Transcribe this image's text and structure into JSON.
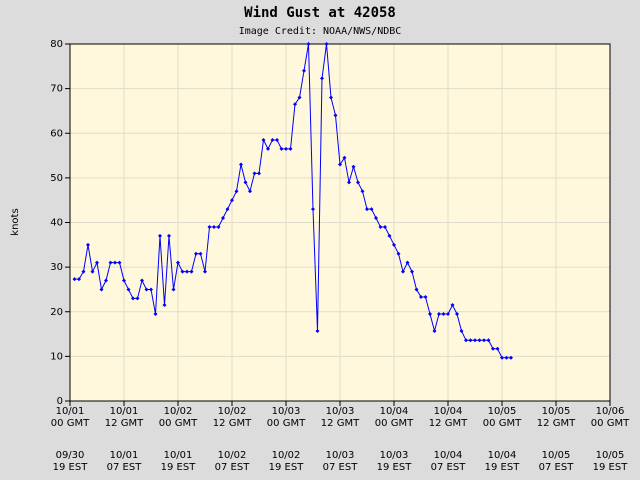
{
  "chart_data": {
    "type": "line",
    "title": "Wind Gust at 42058",
    "subtitle": "Image Credit: NOAA/NWS/NDBC",
    "ylabel": "knots",
    "x": [
      1,
      2,
      3,
      4,
      5,
      6,
      7,
      8,
      9,
      10,
      11,
      12,
      13,
      14,
      15,
      16,
      17,
      18,
      19,
      20,
      21,
      22,
      23,
      24,
      25,
      26,
      27,
      28,
      29,
      30,
      31,
      32,
      33,
      34,
      35,
      36,
      37,
      38,
      39,
      40,
      41,
      42,
      43,
      44,
      45,
      46,
      47,
      48,
      49,
      50,
      51,
      52,
      53,
      54,
      55,
      56,
      57,
      58,
      59,
      60,
      61,
      62,
      63,
      64,
      65,
      66,
      67,
      68,
      69,
      70,
      71,
      72,
      73,
      74,
      75,
      76,
      77,
      78,
      79,
      80,
      81,
      82,
      83,
      84,
      85,
      86,
      87,
      88,
      89,
      90,
      91,
      92,
      93,
      94,
      95,
      96,
      97,
      98
    ],
    "series": [
      {
        "name": "Wind Gust",
        "color": "#0000ff",
        "values": [
          27.3,
          27.3,
          29,
          35,
          29,
          31,
          25,
          27,
          31,
          31,
          31,
          27,
          25,
          23,
          23,
          27,
          25,
          25,
          19.5,
          37,
          21.5,
          37,
          25,
          31,
          29,
          29,
          29,
          33,
          33,
          29,
          39,
          39,
          39,
          41,
          43,
          45,
          47,
          53,
          49,
          47,
          51,
          51,
          58.5,
          56.5,
          58.5,
          58.5,
          56.5,
          56.5,
          56.5,
          66.5,
          68,
          74,
          80,
          43,
          15.7,
          72.3,
          80,
          68,
          64,
          53,
          54.5,
          49,
          52.5,
          49,
          47,
          43,
          43,
          41,
          39,
          39,
          37,
          35,
          33,
          29,
          31,
          29,
          25,
          23.3,
          23.3,
          19.5,
          15.7,
          19.5,
          19.5,
          19.5,
          21.5,
          19.5,
          15.7,
          13.6,
          13.6,
          13.6,
          13.6,
          13.6,
          13.6,
          11.7,
          11.7,
          9.7,
          9.7,
          9.7
        ]
      }
    ],
    "xlim": [
      0,
      120
    ],
    "xticks": [
      {
        "value": 0,
        "label": "10/01\n00 GMT"
      },
      {
        "value": 12,
        "label": "10/01\n12 GMT"
      },
      {
        "value": 24,
        "label": "10/02\n00 GMT"
      },
      {
        "value": 36,
        "label": "10/02\n12 GMT"
      },
      {
        "value": 48,
        "label": "10/03\n00 GMT"
      },
      {
        "value": 60,
        "label": "10/03\n12 GMT"
      },
      {
        "value": 72,
        "label": "10/04\n00 GMT"
      },
      {
        "value": 84,
        "label": "10/04\n12 GMT"
      },
      {
        "value": 96,
        "label": "10/05\n00 GMT"
      },
      {
        "value": 108,
        "label": "10/05\n12 GMT"
      },
      {
        "value": 120,
        "label": "10/06\n00 GMT"
      }
    ],
    "xticks_local": [
      {
        "value": 0,
        "label": "09/30\n19 EST"
      },
      {
        "value": 12,
        "label": "10/01\n07 EST"
      },
      {
        "value": 24,
        "label": "10/01\n19 EST"
      },
      {
        "value": 36,
        "label": "10/02\n07 EST"
      },
      {
        "value": 48,
        "label": "10/02\n19 EST"
      },
      {
        "value": 60,
        "label": "10/03\n07 EST"
      },
      {
        "value": 72,
        "label": "10/03\n19 EST"
      },
      {
        "value": 84,
        "label": "10/04\n07 EST"
      },
      {
        "value": 96,
        "label": "10/04\n19 EST"
      },
      {
        "value": 108,
        "label": "10/05\n07 EST"
      },
      {
        "value": 120,
        "label": "10/05\n19 EST"
      }
    ],
    "ylim": [
      0,
      80
    ],
    "yticks": [
      0,
      10,
      20,
      30,
      40,
      50,
      60,
      70,
      80
    ],
    "grid": true
  }
}
